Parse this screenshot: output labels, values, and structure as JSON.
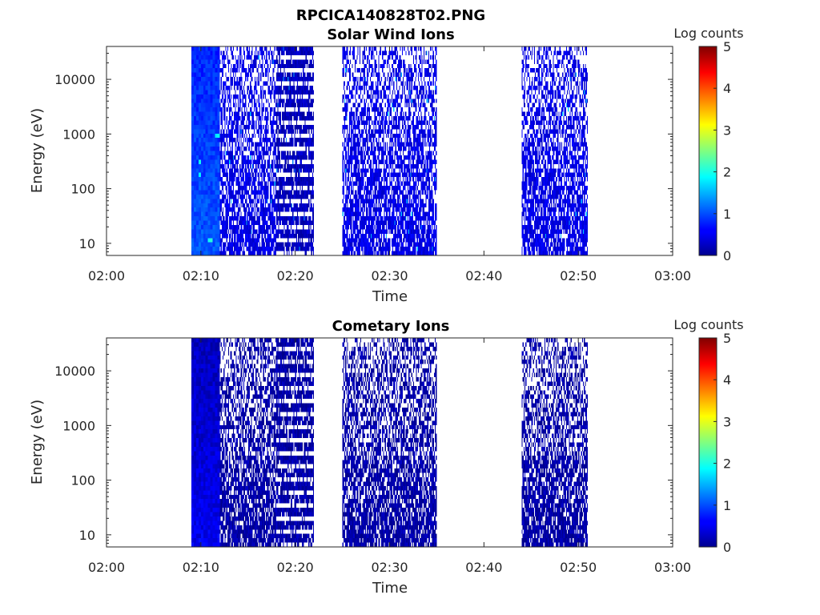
{
  "figure_title": "RPCICA140828T02.PNG",
  "colorbar": {
    "label": "Log counts",
    "ticks": [
      "0",
      "1",
      "2",
      "3",
      "4",
      "5"
    ],
    "range": [
      0,
      5
    ],
    "colormap": "jet"
  },
  "chart_data": [
    {
      "type": "heatmap",
      "title": "Solar Wind Ions",
      "xlabel": "Time",
      "ylabel": "Energy (eV)",
      "x_range": [
        "02:00",
        "03:00"
      ],
      "x_ticks": [
        "02:00",
        "02:10",
        "02:20",
        "02:30",
        "02:40",
        "02:50",
        "03:00"
      ],
      "y_scale": "log",
      "y_range": [
        6,
        40000
      ],
      "y_ticks": [
        "10",
        "100",
        "1000",
        "10000"
      ],
      "value_units": "log counts",
      "data_intervals": [
        {
          "start": "02:09",
          "end": "02:12",
          "energy_max": 40000,
          "typical_log_counts": 0.8
        },
        {
          "start": "02:12",
          "end": "02:18",
          "energy_max": 40000,
          "typical_log_counts": 0.5
        },
        {
          "start": "02:18",
          "end": "02:22",
          "energy_max": 40000,
          "typical_log_counts": 0.3
        },
        {
          "start": "02:25",
          "end": "02:35",
          "energy_max": 40000,
          "typical_log_counts": 0.5
        },
        {
          "start": "02:44",
          "end": "02:51",
          "energy_max": 40000,
          "typical_log_counts": 0.5
        }
      ]
    },
    {
      "type": "heatmap",
      "title": "Cometary Ions",
      "xlabel": "Time",
      "ylabel": "Energy (eV)",
      "x_range": [
        "02:00",
        "03:00"
      ],
      "x_ticks": [
        "02:00",
        "02:10",
        "02:20",
        "02:30",
        "02:40",
        "02:50",
        "03:00"
      ],
      "y_scale": "log",
      "y_range": [
        6,
        40000
      ],
      "y_ticks": [
        "10",
        "100",
        "1000",
        "10000"
      ],
      "value_units": "log counts",
      "data_intervals": [
        {
          "start": "02:09",
          "end": "02:12",
          "energy_max": 40000,
          "typical_log_counts": 0.3
        },
        {
          "start": "02:12",
          "end": "02:18",
          "energy_max": 40000,
          "typical_log_counts": 0.2
        },
        {
          "start": "02:18",
          "end": "02:22",
          "energy_max": 40000,
          "typical_log_counts": 0.2
        },
        {
          "start": "02:25",
          "end": "02:35",
          "energy_max": 40000,
          "typical_log_counts": 0.2
        },
        {
          "start": "02:44",
          "end": "02:51",
          "energy_max": 40000,
          "typical_log_counts": 0.2
        }
      ]
    }
  ]
}
